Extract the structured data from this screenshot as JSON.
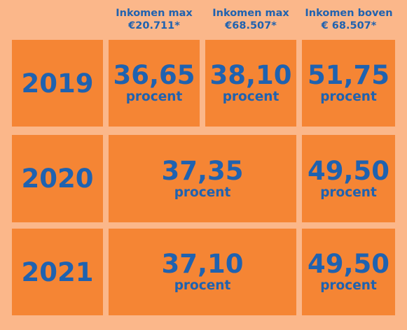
{
  "headers": [
    {
      "line1": "Inkomen max",
      "line2": "€20.711*"
    },
    {
      "line1": "Inkomen max",
      "line2": "€68.507*"
    },
    {
      "line1": "Inkomen boven",
      "line2": "€ 68.507*"
    }
  ],
  "rows": [
    {
      "year": "2019",
      "cells": [
        {
          "value": "36,65",
          "unit": "procent"
        },
        {
          "value": "38,10",
          "unit": "procent"
        },
        {
          "value": "51,75",
          "unit": "procent"
        }
      ]
    },
    {
      "year": "2020",
      "cells": [
        {
          "value": "37,35",
          "unit": "procent"
        },
        {
          "value": "49,50",
          "unit": "procent"
        }
      ]
    },
    {
      "year": "2021",
      "cells": [
        {
          "value": "37,10",
          "unit": "procent"
        },
        {
          "value": "49,50",
          "unit": "procent"
        }
      ]
    }
  ],
  "colors": {
    "background": "#fbb78a",
    "cell": "#f58534",
    "text": "#1f62b0"
  }
}
